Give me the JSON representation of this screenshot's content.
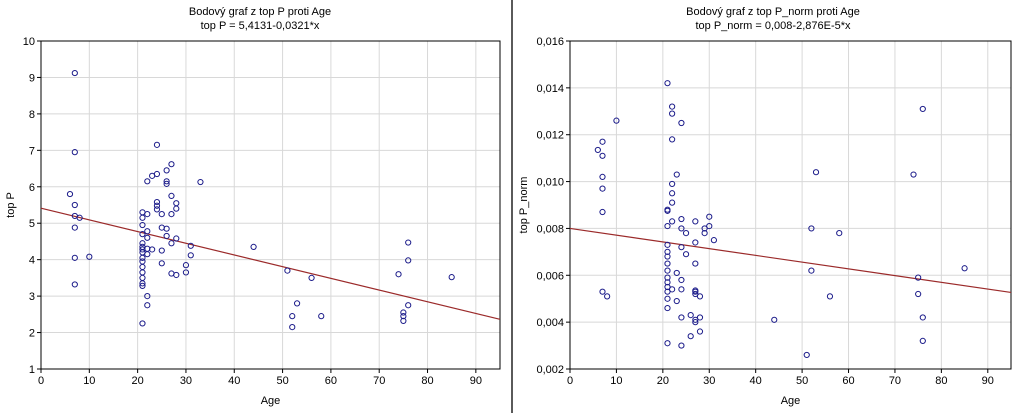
{
  "chart_data": [
    {
      "type": "scatter",
      "title": "Bodový graf z top P proti Age",
      "subtitle": "top P = 5,4131-0,0321*x",
      "xlabel": "Age",
      "ylabel": "top P",
      "xlim": [
        0,
        95
      ],
      "ylim": [
        1,
        10
      ],
      "xticks": [
        "0",
        "10",
        "20",
        "30",
        "40",
        "50",
        "60",
        "70",
        "80",
        "90"
      ],
      "yticks": [
        "1",
        "2",
        "3",
        "4",
        "5",
        "6",
        "7",
        "8",
        "9",
        "10"
      ],
      "grid": true,
      "marker_color": "#1c1c8a",
      "line_color": "#9b2a2a",
      "fit": {
        "intercept": 5.4131,
        "slope": -0.0321
      },
      "points": [
        [
          7,
          9.12
        ],
        [
          7,
          6.95
        ],
        [
          6,
          5.8
        ],
        [
          7,
          5.5
        ],
        [
          7,
          5.2
        ],
        [
          8,
          5.15
        ],
        [
          7,
          4.88
        ],
        [
          7,
          4.05
        ],
        [
          10,
          4.08
        ],
        [
          7,
          3.32
        ],
        [
          21,
          5.3
        ],
        [
          21,
          5.15
        ],
        [
          21,
          4.95
        ],
        [
          21,
          4.7
        ],
        [
          21,
          4.45
        ],
        [
          21,
          4.35
        ],
        [
          21,
          4.28
        ],
        [
          21,
          4.2
        ],
        [
          21,
          4.05
        ],
        [
          21,
          3.95
        ],
        [
          21,
          3.8
        ],
        [
          21,
          3.65
        ],
        [
          21,
          3.5
        ],
        [
          21,
          3.35
        ],
        [
          21,
          3.28
        ],
        [
          21,
          2.25
        ],
        [
          22,
          6.15
        ],
        [
          22,
          5.25
        ],
        [
          22,
          4.78
        ],
        [
          22,
          4.6
        ],
        [
          22,
          4.3
        ],
        [
          22,
          4.15
        ],
        [
          22,
          3.0
        ],
        [
          22,
          2.75
        ],
        [
          23,
          4.28
        ],
        [
          23,
          6.3
        ],
        [
          24,
          7.15
        ],
        [
          24,
          6.35
        ],
        [
          24,
          5.58
        ],
        [
          24,
          5.48
        ],
        [
          24,
          5.38
        ],
        [
          25,
          5.25
        ],
        [
          25,
          4.88
        ],
        [
          25,
          4.25
        ],
        [
          25,
          3.9
        ],
        [
          26,
          6.15
        ],
        [
          26,
          6.45
        ],
        [
          26,
          6.08
        ],
        [
          26,
          4.65
        ],
        [
          26,
          4.85
        ],
        [
          27,
          6.62
        ],
        [
          27,
          5.75
        ],
        [
          27,
          5.25
        ],
        [
          27,
          4.45
        ],
        [
          27,
          3.62
        ],
        [
          28,
          5.55
        ],
        [
          28,
          5.4
        ],
        [
          28,
          4.58
        ],
        [
          28,
          3.58
        ],
        [
          30,
          3.65
        ],
        [
          30,
          3.85
        ],
        [
          31,
          4.38
        ],
        [
          31,
          4.12
        ],
        [
          33,
          6.13
        ],
        [
          44,
          4.35
        ],
        [
          51,
          3.7
        ],
        [
          52,
          2.45
        ],
        [
          52,
          2.15
        ],
        [
          53,
          2.8
        ],
        [
          56,
          3.5
        ],
        [
          58,
          2.45
        ],
        [
          74,
          3.6
        ],
        [
          75,
          2.55
        ],
        [
          75,
          2.45
        ],
        [
          75,
          2.32
        ],
        [
          76,
          4.47
        ],
        [
          76,
          3.98
        ],
        [
          76,
          2.75
        ],
        [
          85,
          3.52
        ]
      ]
    },
    {
      "type": "scatter",
      "title": "Bodový graf z top P_norm proti Age",
      "subtitle": "top P_norm = 0,008-2,876E-5*x",
      "xlabel": "Age",
      "ylabel": "top P_norm",
      "xlim": [
        0,
        95
      ],
      "ylim": [
        0.002,
        0.016
      ],
      "xticks": [
        "0",
        "10",
        "20",
        "30",
        "40",
        "50",
        "60",
        "70",
        "80",
        "90"
      ],
      "yticks": [
        "0,002",
        "0,004",
        "0,006",
        "0,008",
        "0,010",
        "0,012",
        "0,014",
        "0,016"
      ],
      "grid": true,
      "marker_color": "#1c1c8a",
      "line_color": "#9b2a2a",
      "fit": {
        "intercept": 0.008,
        "slope": -2.876e-05
      },
      "points": [
        [
          6,
          0.01135
        ],
        [
          7,
          0.0117
        ],
        [
          7,
          0.0111
        ],
        [
          7,
          0.0102
        ],
        [
          7,
          0.0097
        ],
        [
          7,
          0.0087
        ],
        [
          7,
          0.0053
        ],
        [
          8,
          0.0051
        ],
        [
          10,
          0.0126
        ],
        [
          21,
          0.0142
        ],
        [
          21,
          0.0088
        ],
        [
          21,
          0.00875
        ],
        [
          21,
          0.0081
        ],
        [
          21,
          0.0073
        ],
        [
          21,
          0.007
        ],
        [
          21,
          0.0068
        ],
        [
          21,
          0.0065
        ],
        [
          21,
          0.0062
        ],
        [
          21,
          0.0059
        ],
        [
          21,
          0.0057
        ],
        [
          21,
          0.0055
        ],
        [
          21,
          0.0053
        ],
        [
          21,
          0.005
        ],
        [
          21,
          0.0046
        ],
        [
          21,
          0.0031
        ],
        [
          22,
          0.0132
        ],
        [
          22,
          0.0129
        ],
        [
          22,
          0.0118
        ],
        [
          22,
          0.0099
        ],
        [
          22,
          0.0095
        ],
        [
          22,
          0.0091
        ],
        [
          22,
          0.0083
        ],
        [
          22,
          0.0054
        ],
        [
          23,
          0.0103
        ],
        [
          23,
          0.0049
        ],
        [
          23,
          0.0061
        ],
        [
          24,
          0.0125
        ],
        [
          24,
          0.0084
        ],
        [
          24,
          0.008
        ],
        [
          24,
          0.0072
        ],
        [
          24,
          0.0058
        ],
        [
          24,
          0.0054
        ],
        [
          24,
          0.0042
        ],
        [
          24,
          0.003
        ],
        [
          25,
          0.0078
        ],
        [
          25,
          0.0069
        ],
        [
          26,
          0.0043
        ],
        [
          26,
          0.0034
        ],
        [
          27,
          0.0083
        ],
        [
          27,
          0.0074
        ],
        [
          27,
          0.0065
        ],
        [
          27,
          0.0053
        ],
        [
          27,
          0.00535
        ],
        [
          27,
          0.0052
        ],
        [
          27,
          0.0041
        ],
        [
          27,
          0.004
        ],
        [
          28,
          0.0051
        ],
        [
          28,
          0.0042
        ],
        [
          28,
          0.0036
        ],
        [
          29,
          0.008
        ],
        [
          29,
          0.0078
        ],
        [
          30,
          0.0085
        ],
        [
          30,
          0.0081
        ],
        [
          31,
          0.0075
        ],
        [
          44,
          0.0041
        ],
        [
          51,
          0.0026
        ],
        [
          52,
          0.008
        ],
        [
          52,
          0.0062
        ],
        [
          53,
          0.0104
        ],
        [
          56,
          0.0051
        ],
        [
          58,
          0.0078
        ],
        [
          74,
          0.0103
        ],
        [
          75,
          0.0059
        ],
        [
          75,
          0.0052
        ],
        [
          76,
          0.0131
        ],
        [
          76,
          0.0042
        ],
        [
          76,
          0.0032
        ],
        [
          85,
          0.0063
        ]
      ]
    }
  ]
}
